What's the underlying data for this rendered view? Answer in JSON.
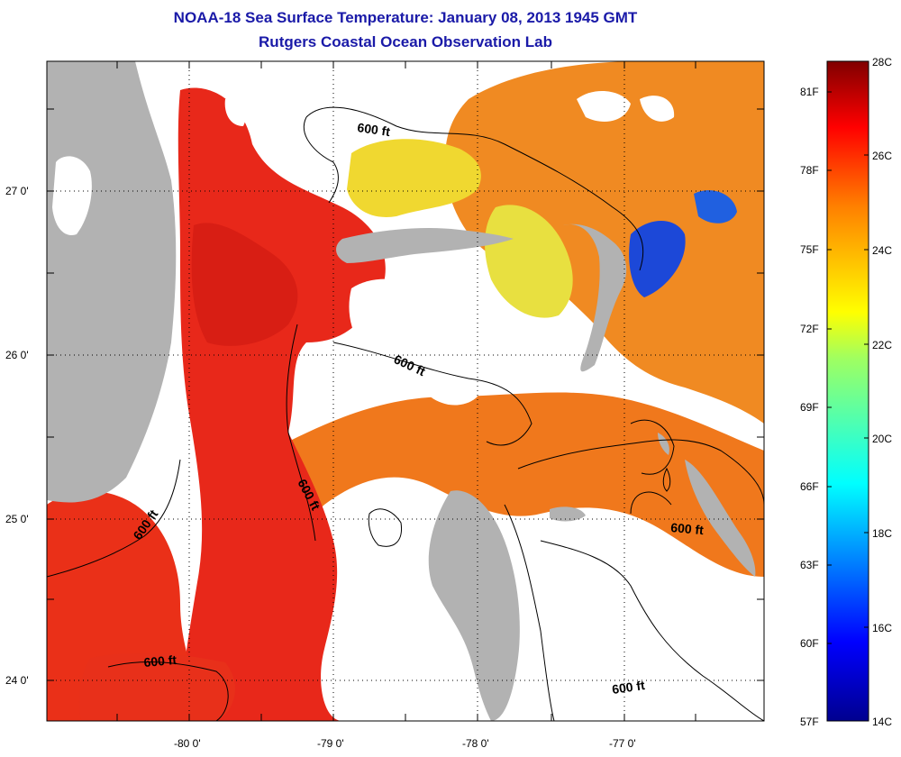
{
  "title": "NOAA-18 Sea Surface Temperature:  January 08, 2013 1945 GMT",
  "subtitle": "Rutgers Coastal Ocean Observation Lab",
  "map": {
    "lat_labels": [
      "27 0'",
      "26 0'",
      "25 0'",
      "24 0'"
    ],
    "lon_labels": [
      "-80 0'",
      "-79 0'",
      "-78 0'",
      "-77 0'"
    ],
    "contour_labels": [
      "600 ft",
      "600 ft",
      "600 ft",
      "600 ft",
      "600 ft",
      "600 ft"
    ],
    "colors": {
      "land": "#b2b2b2",
      "cloud": "#ffffff",
      "warm": "#e82a12",
      "mid": "#f07a1e",
      "cool_yellow": "#f0e030",
      "cold": "#1840d0"
    }
  },
  "colorbar": {
    "fahrenheit_labels": [
      "81F",
      "78F",
      "75F",
      "72F",
      "69F",
      "66F",
      "63F",
      "60F",
      "57F"
    ],
    "celsius_labels": [
      "28C",
      "26C",
      "24C",
      "22C",
      "20C",
      "18C",
      "16C",
      "14C"
    ],
    "range_c": [
      14,
      28
    ],
    "range_f": [
      57,
      82
    ]
  }
}
